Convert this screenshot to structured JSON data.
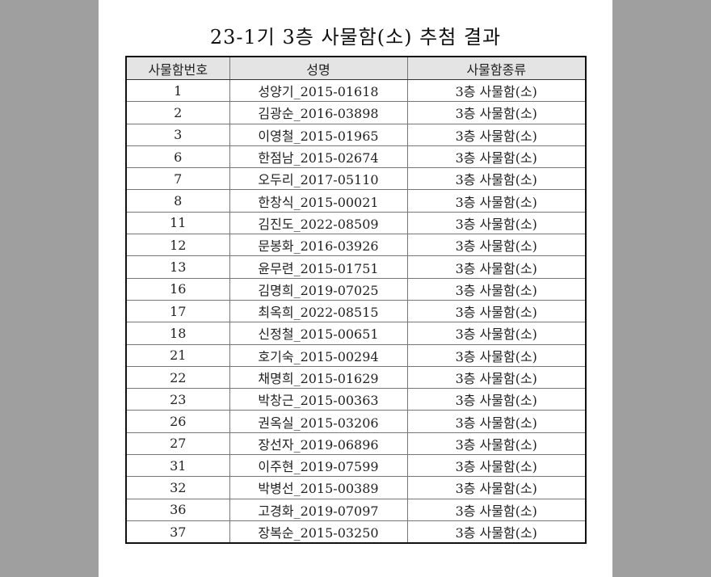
{
  "title": "23-1기 3층 사물함(소) 추첨 결과",
  "headers": [
    "사물함번호",
    "성명",
    "사물함종류"
  ],
  "rows": [
    [
      "1",
      "성양기_2015-01618",
      "3층 사물함(소)"
    ],
    [
      "2",
      "김광순_2016-03898",
      "3층 사물함(소)"
    ],
    [
      "3",
      "이영철_2015-01965",
      "3층 사물함(소)"
    ],
    [
      "6",
      "한점남_2015-02674",
      "3층 사물함(소)"
    ],
    [
      "7",
      "오두리_2017-05110",
      "3층 사물함(소)"
    ],
    [
      "8",
      "한창식_2015-00021",
      "3층 사물함(소)"
    ],
    [
      "11",
      "김진도_2022-08509",
      "3층 사물함(소)"
    ],
    [
      "12",
      "문봉화_2016-03926",
      "3층 사물함(소)"
    ],
    [
      "13",
      "윤무련_2015-01751",
      "3층 사물함(소)"
    ],
    [
      "16",
      "김명희_2019-07025",
      "3층 사물함(소)"
    ],
    [
      "17",
      "최옥희_2022-08515",
      "3층 사물함(소)"
    ],
    [
      "18",
      "신정철_2015-00651",
      "3층 사물함(소)"
    ],
    [
      "21",
      "호기숙_2015-00294",
      "3층 사물함(소)"
    ],
    [
      "22",
      "채명희_2015-01629",
      "3층 사물함(소)"
    ],
    [
      "23",
      "박창근_2015-00363",
      "3층 사물함(소)"
    ],
    [
      "26",
      "권옥실_2015-03206",
      "3층 사물함(소)"
    ],
    [
      "27",
      "장선자_2019-06896",
      "3층 사물함(소)"
    ],
    [
      "31",
      "이주현_2019-07599",
      "3층 사물함(소)"
    ],
    [
      "32",
      "박병선_2015-00389",
      "3층 사물함(소)"
    ],
    [
      "36",
      "고경화_2019-07097",
      "3층 사물함(소)"
    ],
    [
      "37",
      "장복순_2015-03250",
      "3층 사물함(소)"
    ]
  ]
}
